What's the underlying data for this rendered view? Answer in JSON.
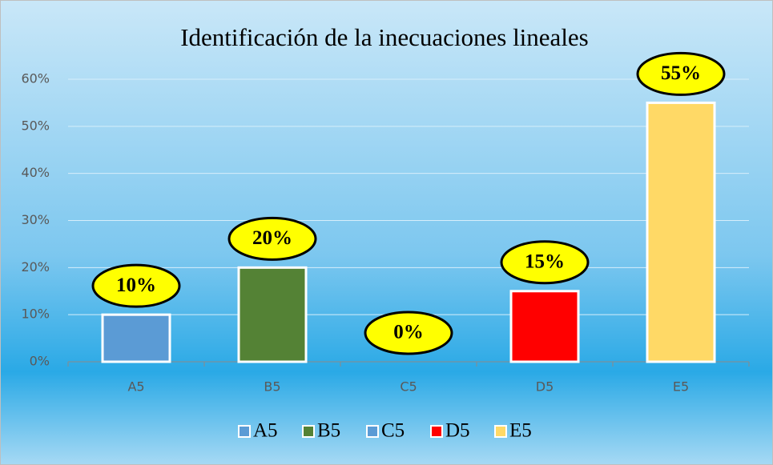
{
  "chart_data": {
    "type": "bar",
    "title": "Identificación de la inecuaciones lineales",
    "categories": [
      "A5",
      "B5",
      "C5",
      "D5",
      "E5"
    ],
    "values": [
      10,
      20,
      0,
      15,
      55
    ],
    "value_labels": [
      "10%",
      "20%",
      "0%",
      "15%",
      "55%"
    ],
    "colors": [
      "#5b9bd5",
      "#548235",
      "#5b9bd5",
      "#ff0000",
      "#ffd966"
    ],
    "ylim": [
      0,
      60
    ],
    "yticks": [
      {
        "value": 0,
        "label": "0%"
      },
      {
        "value": 10,
        "label": "10%"
      },
      {
        "value": 20,
        "label": "20%"
      },
      {
        "value": 30,
        "label": "30%"
      },
      {
        "value": 40,
        "label": "40%"
      },
      {
        "value": 50,
        "label": "50%"
      },
      {
        "value": 60,
        "label": "60%"
      }
    ],
    "grid": true,
    "legend": "bottom"
  }
}
